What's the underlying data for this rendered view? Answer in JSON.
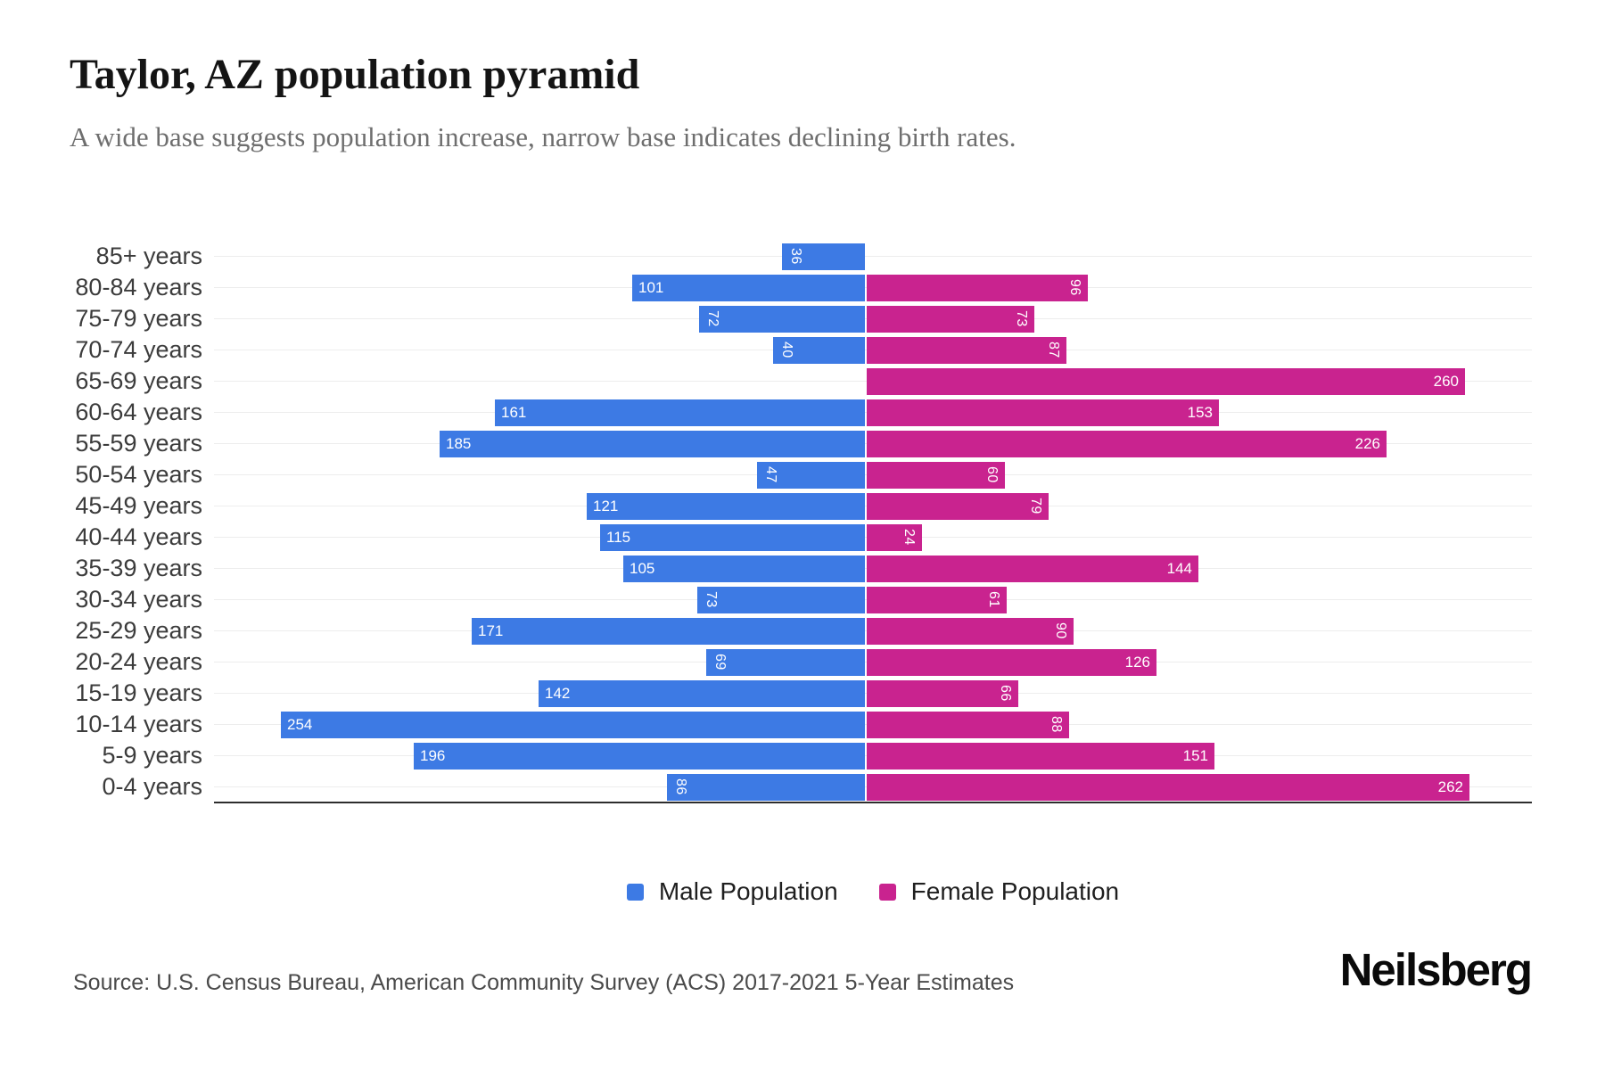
{
  "header": {
    "title": "Taylor, AZ population pyramid",
    "subtitle": "A wide base suggests population increase, narrow base indicates declining birth rates."
  },
  "chart_data": {
    "type": "bar",
    "variant": "population-pyramid",
    "orientation": "horizontal",
    "title": "Taylor, AZ population pyramid",
    "categories": [
      "85+ years",
      "80-84 years",
      "75-79 years",
      "70-74 years",
      "65-69 years",
      "60-64 years",
      "55-59 years",
      "50-54 years",
      "45-49 years",
      "40-44 years",
      "35-39 years",
      "30-34 years",
      "25-29 years",
      "20-24 years",
      "15-19 years",
      "10-14 years",
      "5-9 years",
      "0-4 years"
    ],
    "series": [
      {
        "name": "Male Population",
        "side": "left",
        "color": "#3D7AE4",
        "values": [
          36,
          101,
          72,
          40,
          0,
          161,
          185,
          47,
          121,
          115,
          105,
          73,
          171,
          69,
          142,
          254,
          196,
          86
        ]
      },
      {
        "name": "Female Population",
        "side": "right",
        "color": "#C9238F",
        "values": [
          0,
          96,
          73,
          87,
          260,
          153,
          226,
          60,
          79,
          24,
          144,
          61,
          90,
          126,
          66,
          88,
          151,
          262
        ]
      }
    ],
    "value_axis": {
      "min": 0,
      "approx_max_per_side": 285,
      "gridlines": true
    },
    "legend_position": "bottom",
    "bar_label_style": "inside-end, rotated 90deg when value < 100"
  },
  "footer": {
    "source": "Source: U.S. Census Bureau, American Community Survey (ACS) 2017-2021 5-Year Estimates",
    "brand": "Neilsberg"
  }
}
